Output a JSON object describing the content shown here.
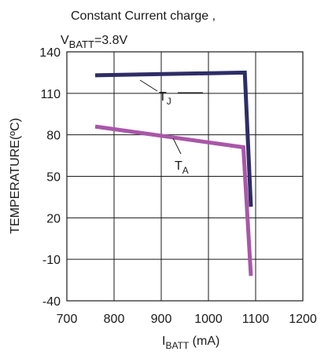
{
  "chart_data": {
    "type": "line",
    "title_line1": "Constant Current charge ,",
    "title_line2": {
      "main": "V",
      "sub": "BATT",
      "rest": "=3.8V"
    },
    "xlabel": {
      "main": "I",
      "sub": "BATT",
      "rest": " (mA)"
    },
    "ylabel": "TEMPERATURE(ºC)",
    "xlim": [
      700,
      1200
    ],
    "ylim": [
      -40,
      140
    ],
    "xticks": [
      700,
      800,
      900,
      1000,
      1100,
      1200
    ],
    "yticks": [
      -40,
      -10,
      20,
      50,
      80,
      110,
      140
    ],
    "xtick_labels": [
      "700",
      "800",
      "900",
      "1000",
      "1100",
      "1200"
    ],
    "ytick_labels": [
      "-40",
      "-10",
      "20",
      "50",
      "80",
      "110",
      "140"
    ],
    "grid": true,
    "series": [
      {
        "name": "TJ",
        "label": {
          "main": "T",
          "sub": "J"
        },
        "color": "#2e2d66",
        "points": [
          [
            760,
            123
          ],
          [
            1077,
            125
          ],
          [
            1090,
            28
          ]
        ]
      },
      {
        "name": "TA",
        "label": {
          "main": "T",
          "sub": "A"
        },
        "color": "#a957a8",
        "points": [
          [
            760,
            86
          ],
          [
            1074,
            71
          ],
          [
            1090,
            -22
          ]
        ]
      }
    ]
  }
}
